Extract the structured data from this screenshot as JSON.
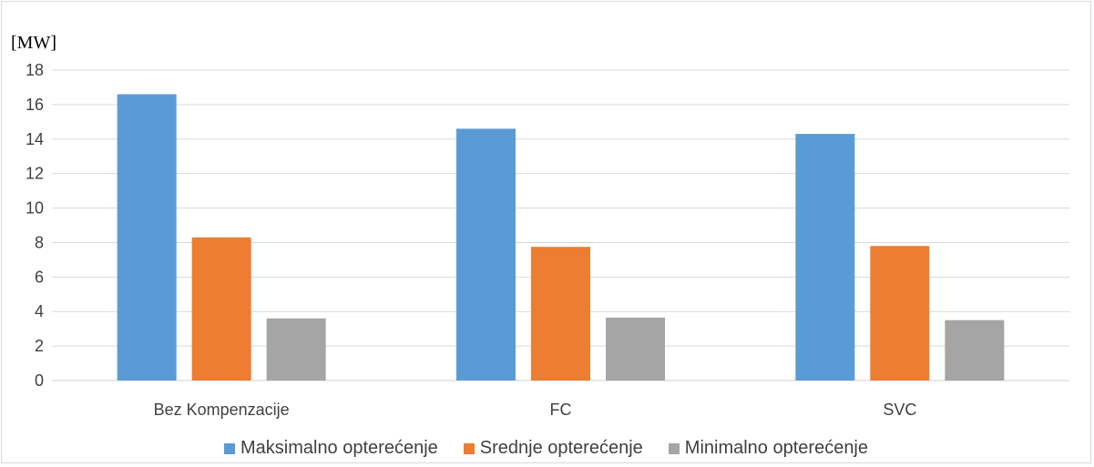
{
  "chart_data": {
    "type": "bar",
    "ylabel": "[MW]",
    "categories": [
      "Bez Kompenzacije",
      "FC",
      "SVC"
    ],
    "series": [
      {
        "name": "Maksimalno opterećenje",
        "values": [
          16.6,
          14.6,
          14.3
        ],
        "color": "#5b9bd5"
      },
      {
        "name": "Srednje opterećenje",
        "values": [
          8.3,
          7.75,
          7.8
        ],
        "color": "#ed7d31"
      },
      {
        "name": "Minimalno opterećenje",
        "values": [
          3.6,
          3.65,
          3.5
        ],
        "color": "#a5a5a5"
      }
    ],
    "ylim": [
      0,
      18
    ],
    "yticks": [
      0,
      2,
      4,
      6,
      8,
      10,
      12,
      14,
      16,
      18
    ],
    "grid": true,
    "legend": "bottom"
  }
}
